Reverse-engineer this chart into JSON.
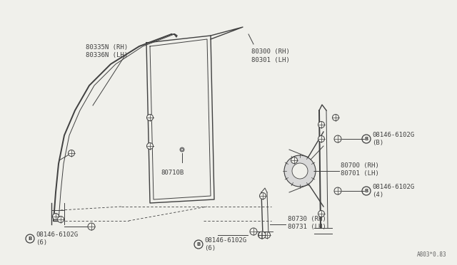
{
  "background_color": "#f0f0eb",
  "line_color": "#404040",
  "text_color": "#404040",
  "watermark": "A803*0.83",
  "label_80335N": "80335N (RH)\n80336N (LH)",
  "label_80300": "80300 (RH)\n80301 (LH)",
  "label_80710B": "80710B",
  "label_80700": "80700 (RH)\n80701 (LH)",
  "label_80730": "80730 (RH)\n80731 (LH)",
  "label_bolt_B": "08146-6102G\n(B)",
  "label_bolt_4": "08146-6102G\n(4)",
  "label_bolt_6a": "08146-6102G\n(6)",
  "label_bolt_6b": "08146-6102G\n(6)"
}
